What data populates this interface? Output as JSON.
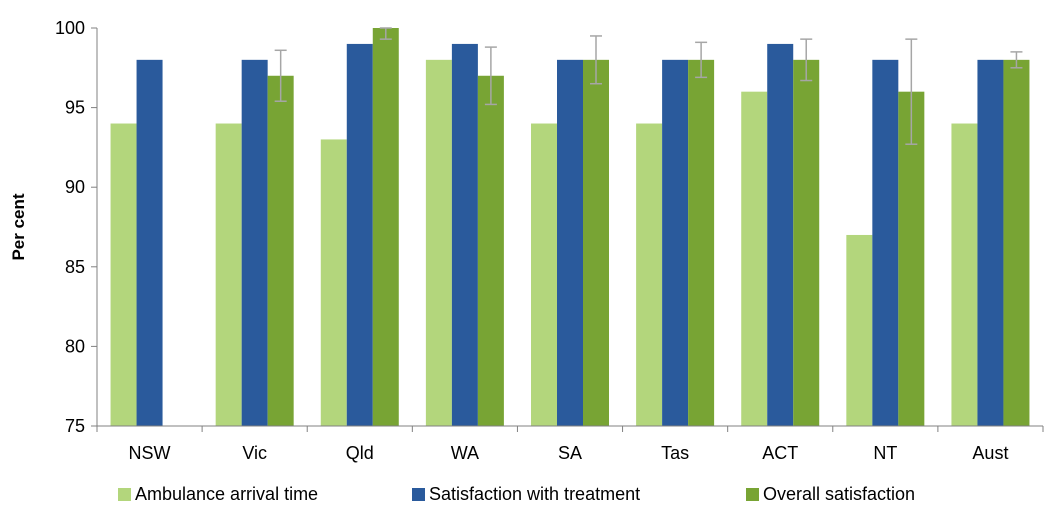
{
  "chart_data": {
    "type": "bar",
    "categories": [
      "NSW",
      "Vic",
      "Qld",
      "WA",
      "SA",
      "Tas",
      "ACT",
      "NT",
      "Aust"
    ],
    "series": [
      {
        "name": "Ambulance arrival time",
        "color": "#b3d67c",
        "values": [
          94,
          94,
          93,
          98,
          94,
          94,
          96,
          87,
          94
        ]
      },
      {
        "name": "Satisfaction with treatment",
        "color": "#2a5a9c",
        "values": [
          98,
          98,
          99,
          99,
          98,
          98,
          99,
          98,
          98
        ]
      },
      {
        "name": "Overall satisfaction",
        "color": "#78a434",
        "values": [
          75,
          97,
          100,
          97,
          98,
          98,
          98,
          96,
          98
        ],
        "error_low": [
          null,
          95.4,
          99.3,
          95.2,
          96.5,
          96.9,
          96.7,
          92.7,
          97.5
        ],
        "error_high": [
          null,
          98.6,
          100,
          98.8,
          99.5,
          99.1,
          99.3,
          99.3,
          98.5
        ]
      }
    ],
    "ylabel": "Per cent",
    "ylim": [
      75,
      100
    ],
    "yticks": [
      75,
      80,
      85,
      90,
      95,
      100
    ],
    "grid": false,
    "legend_position": "bottom"
  }
}
